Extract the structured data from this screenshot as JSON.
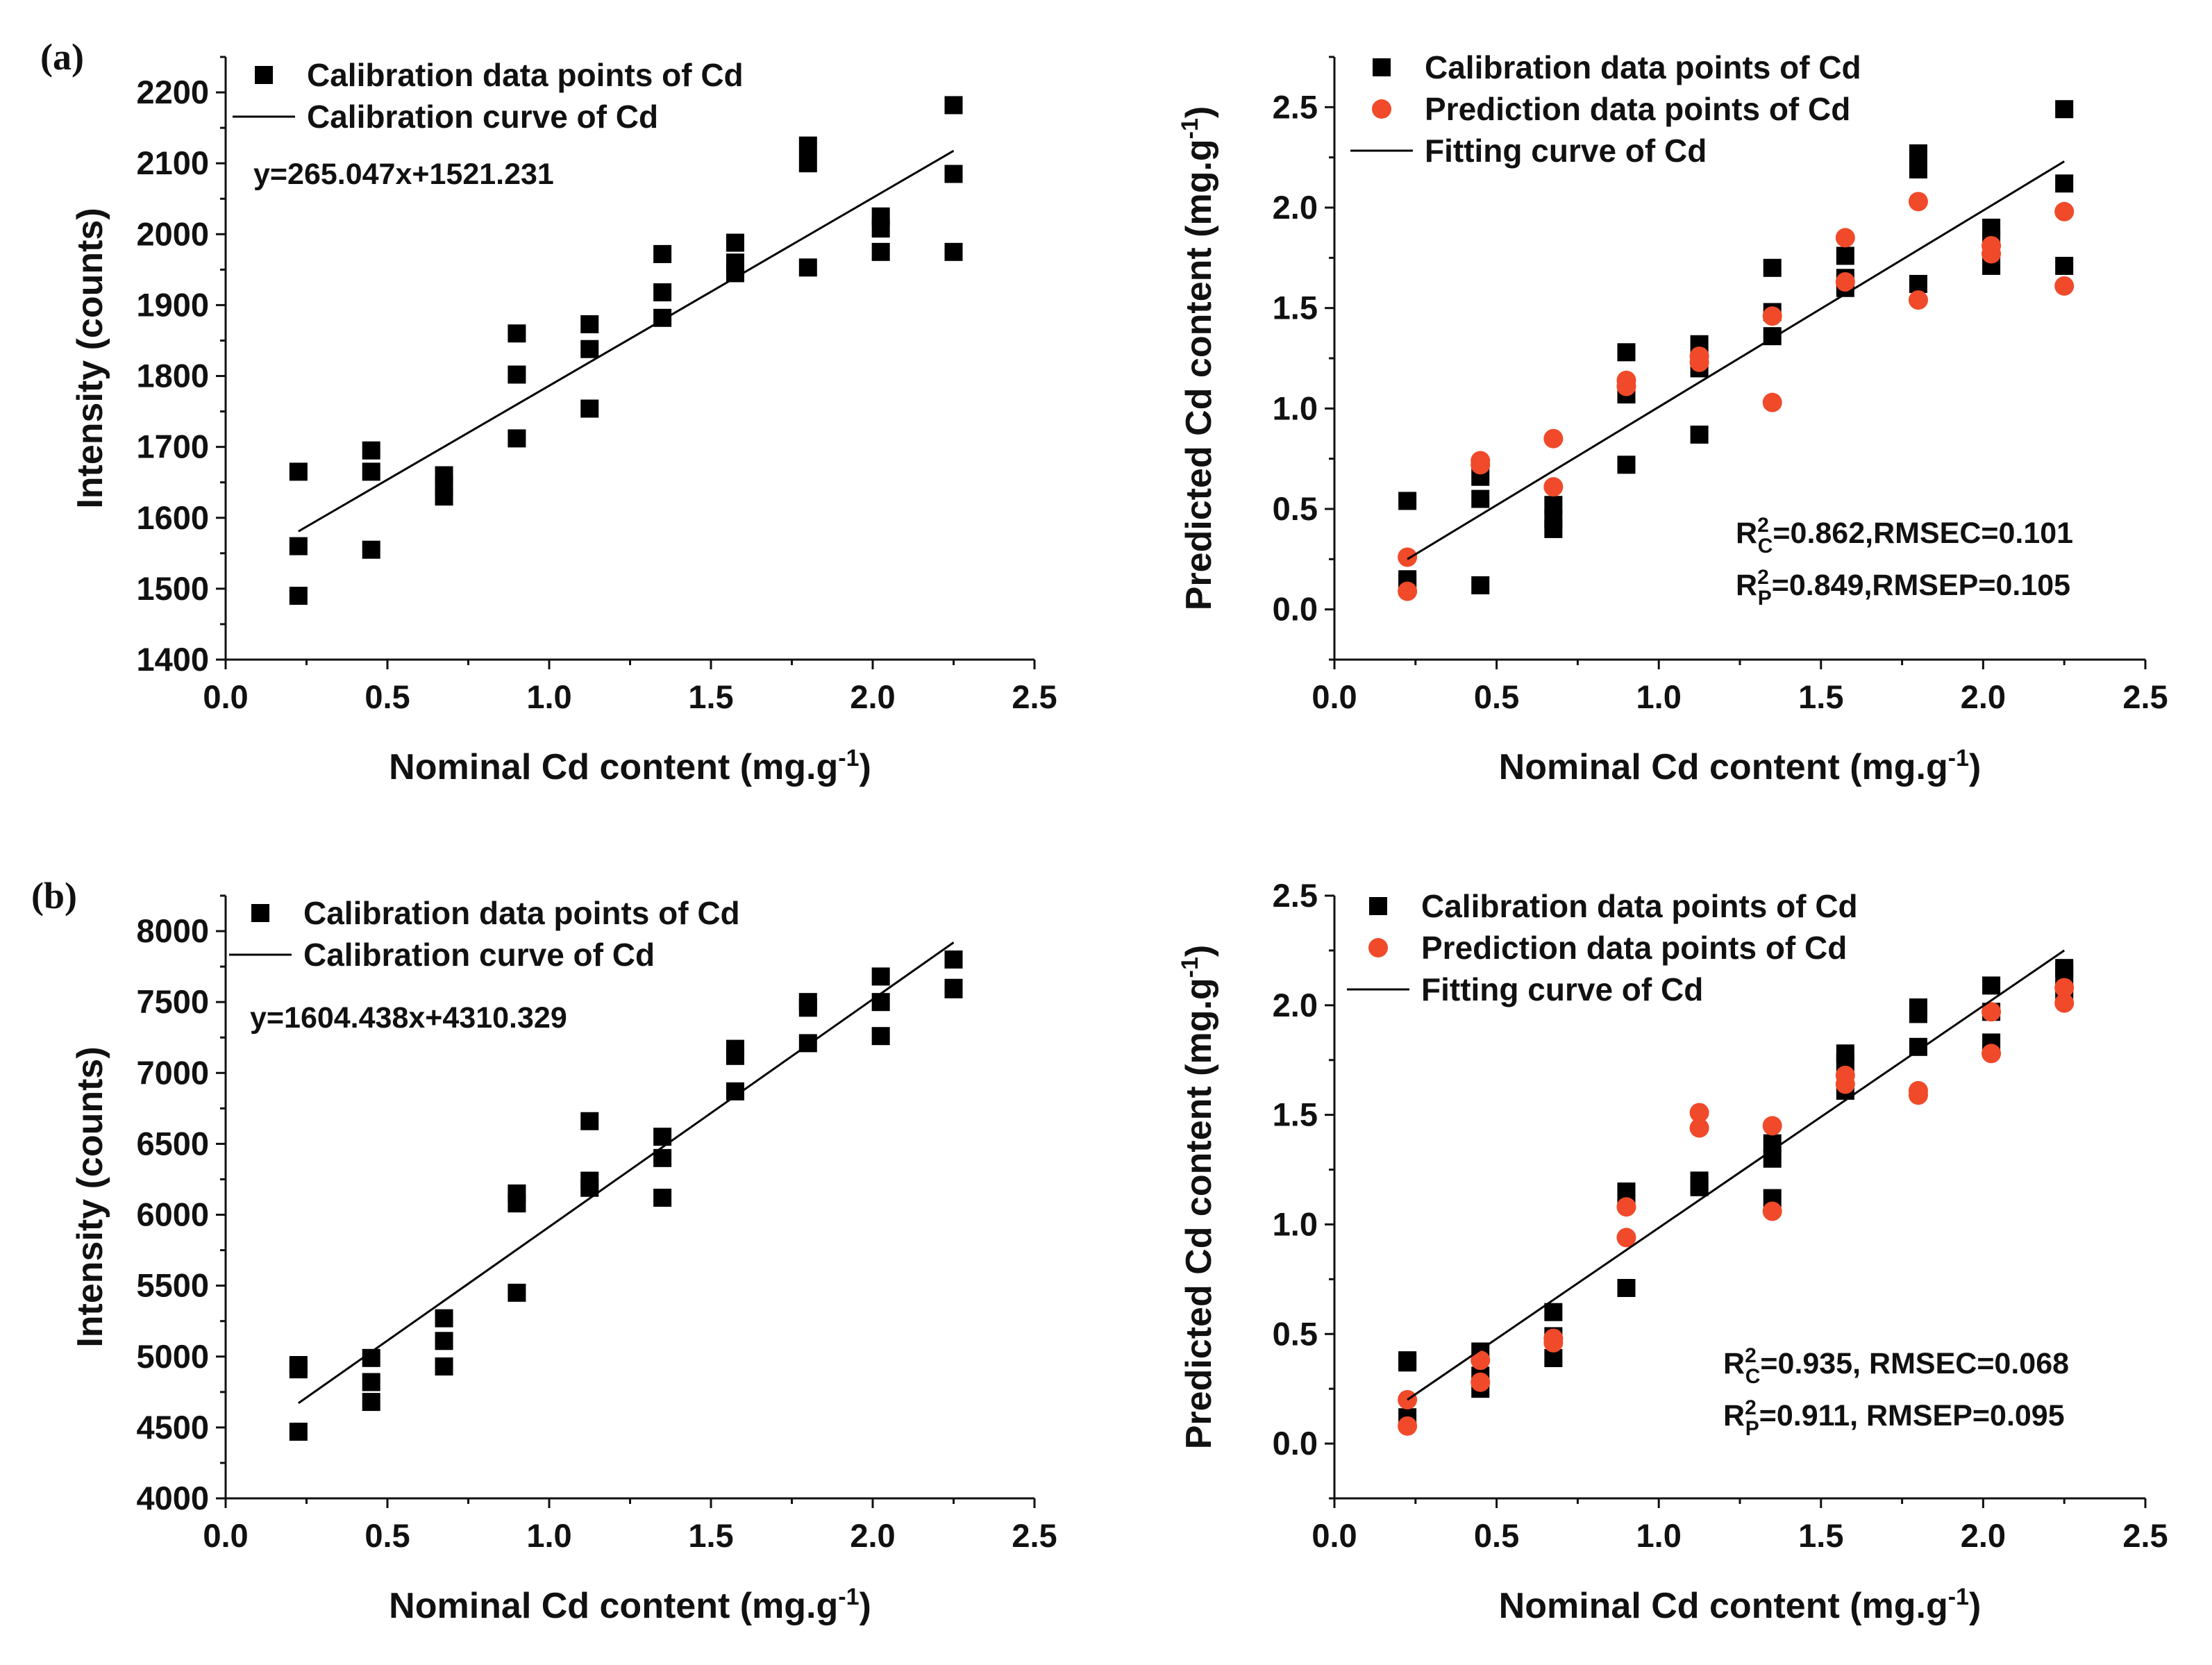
{
  "chart_data": [
    {
      "id": "a-left",
      "type": "scatter",
      "panel_label": "(a)",
      "xlabel": "Nominal Cd content (mg.g",
      "xlabel_sup": "-1",
      "xlabel_end": ")",
      "ylabel": "Intensity (counts)",
      "xlim": [
        0,
        2.5
      ],
      "ylim": [
        1400,
        2250
      ],
      "xticks": [
        0,
        0.5,
        1,
        1.5,
        2,
        2.5
      ],
      "xtick_labels": [
        "0.0",
        "0.5",
        "1.0",
        "1.5",
        "2.0",
        "2.5"
      ],
      "yticks": [
        1400,
        1500,
        1600,
        1700,
        1800,
        1900,
        2000,
        2100,
        2200
      ],
      "ytick_labels": [
        "1400",
        "1500",
        "1600",
        "1700",
        "1800",
        "1900",
        "2000",
        "2100",
        "2200"
      ],
      "legend": [
        {
          "label": "Calibration data points of Cd",
          "marker": "square",
          "color": "#000000"
        },
        {
          "label": "Calibration curve of Cd",
          "marker": "line",
          "color": "#000000"
        }
      ],
      "equation": "y=265.047x+1521.231",
      "series": [
        {
          "name": "Calibration data points of Cd",
          "marker": "square",
          "color": "#000000",
          "points": [
            [
              0.225,
              1665
            ],
            [
              0.225,
              1560
            ],
            [
              0.225,
              1490
            ],
            [
              0.45,
              1695
            ],
            [
              0.45,
              1665
            ],
            [
              0.45,
              1555
            ],
            [
              0.675,
              1660
            ],
            [
              0.675,
              1645
            ],
            [
              0.675,
              1630
            ],
            [
              0.9,
              1860
            ],
            [
              0.9,
              1802
            ],
            [
              0.9,
              1712
            ],
            [
              1.125,
              1873
            ],
            [
              1.125,
              1838
            ],
            [
              1.125,
              1754
            ],
            [
              1.35,
              1972
            ],
            [
              1.35,
              1918
            ],
            [
              1.35,
              1882
            ],
            [
              1.575,
              1988
            ],
            [
              1.575,
              1960
            ],
            [
              1.575,
              1945
            ],
            [
              1.8,
              2125
            ],
            [
              1.8,
              2100
            ],
            [
              1.8,
              1953
            ],
            [
              2.025,
              2025
            ],
            [
              2.025,
              2008
            ],
            [
              2.025,
              1975
            ],
            [
              2.25,
              2182
            ],
            [
              2.25,
              2085
            ],
            [
              2.25,
              1975
            ]
          ]
        },
        {
          "name": "Calibration curve of Cd",
          "type": "line",
          "color": "#000000",
          "points": [
            [
              0.225,
              1580.9
            ],
            [
              2.25,
              2117.6
            ]
          ]
        }
      ]
    },
    {
      "id": "a-right",
      "type": "scatter",
      "xlabel": "Nominal Cd content (mg.g",
      "xlabel_sup": "-1",
      "xlabel_end": ")",
      "ylabel": "Predicted Cd content (mg.g",
      "ylabel_sup": "-1",
      "ylabel_end": ")",
      "xlim": [
        0,
        2.5
      ],
      "ylim": [
        -0.25,
        2.75
      ],
      "xticks": [
        0,
        0.5,
        1,
        1.5,
        2,
        2.5
      ],
      "xtick_labels": [
        "0.0",
        "0.5",
        "1.0",
        "1.5",
        "2.0",
        "2.5"
      ],
      "yticks": [
        0,
        0.5,
        1,
        1.5,
        2,
        2.5
      ],
      "ytick_labels": [
        "0.0",
        "0.5",
        "1.0",
        "1.5",
        "2.0",
        "2.5"
      ],
      "legend": [
        {
          "label": "Calibration data points of Cd",
          "marker": "square",
          "color": "#000000"
        },
        {
          "label": "Prediction data points of Cd",
          "marker": "circle",
          "color": "#f04a2a"
        },
        {
          "label": "Fitting curve of Cd",
          "marker": "line",
          "color": "#000000"
        }
      ],
      "annotations": [
        {
          "base": "R",
          "sup": "2",
          "sub": "C",
          "rest": "=0.862,RMSEC=0.101"
        },
        {
          "base": "R",
          "sup": "2",
          "sub": "P",
          "rest": "=0.849,RMSEP=0.105"
        }
      ],
      "series": [
        {
          "name": "Calibration data points of Cd",
          "marker": "square",
          "color": "#000000",
          "points": [
            [
              0.225,
              0.54
            ],
            [
              0.225,
              0.15
            ],
            [
              0.225,
              0.13
            ],
            [
              0.45,
              0.66
            ],
            [
              0.45,
              0.55
            ],
            [
              0.45,
              0.12
            ],
            [
              0.675,
              0.52
            ],
            [
              0.675,
              0.45
            ],
            [
              0.675,
              0.4
            ],
            [
              0.9,
              1.28
            ],
            [
              0.9,
              1.07
            ],
            [
              0.9,
              0.72
            ],
            [
              1.125,
              1.32
            ],
            [
              1.125,
              1.2
            ],
            [
              1.125,
              0.87
            ],
            [
              1.35,
              1.7
            ],
            [
              1.35,
              1.48
            ],
            [
              1.35,
              1.36
            ],
            [
              1.575,
              1.76
            ],
            [
              1.575,
              1.65
            ],
            [
              1.575,
              1.6
            ],
            [
              1.8,
              2.27
            ],
            [
              1.8,
              2.19
            ],
            [
              1.8,
              1.62
            ],
            [
              2.025,
              1.9
            ],
            [
              2.025,
              1.84
            ],
            [
              2.025,
              1.71
            ],
            [
              2.25,
              2.49
            ],
            [
              2.25,
              2.12
            ],
            [
              2.25,
              1.71
            ]
          ]
        },
        {
          "name": "Prediction data points of Cd",
          "marker": "circle",
          "color": "#f04a2a",
          "points": [
            [
              0.225,
              0.26
            ],
            [
              0.225,
              0.09
            ],
            [
              0.45,
              0.74
            ],
            [
              0.45,
              0.72
            ],
            [
              0.675,
              0.85
            ],
            [
              0.675,
              0.61
            ],
            [
              0.9,
              1.14
            ],
            [
              0.9,
              1.11
            ],
            [
              1.125,
              1.26
            ],
            [
              1.125,
              1.23
            ],
            [
              1.35,
              1.46
            ],
            [
              1.35,
              1.03
            ],
            [
              1.575,
              1.85
            ],
            [
              1.575,
              1.63
            ],
            [
              1.8,
              2.03
            ],
            [
              1.8,
              1.54
            ],
            [
              2.025,
              1.81
            ],
            [
              2.025,
              1.77
            ],
            [
              2.25,
              1.98
            ],
            [
              2.25,
              1.61
            ]
          ]
        },
        {
          "name": "Fitting curve of Cd",
          "type": "line",
          "color": "#000000",
          "points": [
            [
              0.225,
              0.25
            ],
            [
              2.25,
              2.23
            ]
          ]
        }
      ]
    },
    {
      "id": "b-left",
      "type": "scatter",
      "panel_label": "(b)",
      "xlabel": "Nominal Cd content (mg.g",
      "xlabel_sup": "-1",
      "xlabel_end": ")",
      "ylabel": "Intensity (counts)",
      "xlim": [
        0,
        2.5
      ],
      "ylim": [
        4000,
        8250
      ],
      "xticks": [
        0,
        0.5,
        1,
        1.5,
        2,
        2.5
      ],
      "xtick_labels": [
        "0.0",
        "0.5",
        "1.0",
        "1.5",
        "2.0",
        "2.5"
      ],
      "yticks": [
        4000,
        4500,
        5000,
        5500,
        6000,
        6500,
        7000,
        7500,
        8000
      ],
      "ytick_labels": [
        "4000",
        "4500",
        "5000",
        "5500",
        "6000",
        "6500",
        "7000",
        "7500",
        "8000"
      ],
      "legend": [
        {
          "label": "Calibration data points of Cd",
          "marker": "square",
          "color": "#000000"
        },
        {
          "label": "Calibration curve of Cd",
          "marker": "line",
          "color": "#000000"
        }
      ],
      "equation": "y=1604.438x+4310.329",
      "series": [
        {
          "name": "Calibration data points of Cd",
          "marker": "square",
          "color": "#000000",
          "points": [
            [
              0.225,
              4940
            ],
            [
              0.225,
              4910
            ],
            [
              0.225,
              4470
            ],
            [
              0.45,
              4990
            ],
            [
              0.45,
              4820
            ],
            [
              0.45,
              4680
            ],
            [
              0.675,
              5270
            ],
            [
              0.675,
              5110
            ],
            [
              0.675,
              4930
            ],
            [
              0.9,
              6150
            ],
            [
              0.9,
              6080
            ],
            [
              0.9,
              5450
            ],
            [
              1.125,
              6660
            ],
            [
              1.125,
              6240
            ],
            [
              1.125,
              6190
            ],
            [
              1.35,
              6550
            ],
            [
              1.35,
              6400
            ],
            [
              1.35,
              6120
            ],
            [
              1.575,
              7170
            ],
            [
              1.575,
              7120
            ],
            [
              1.575,
              6870
            ],
            [
              1.8,
              7500
            ],
            [
              1.8,
              7460
            ],
            [
              1.8,
              7210
            ],
            [
              2.025,
              7680
            ],
            [
              2.025,
              7500
            ],
            [
              2.025,
              7260
            ],
            [
              2.25,
              7800
            ],
            [
              2.25,
              7600
            ],
            [
              2.25,
              7590
            ]
          ]
        },
        {
          "name": "Calibration curve of Cd",
          "type": "line",
          "color": "#000000",
          "points": [
            [
              0.225,
              4671.3
            ],
            [
              2.25,
              7920.3
            ]
          ]
        }
      ]
    },
    {
      "id": "b-right",
      "type": "scatter",
      "xlabel": "Nominal Cd content (mg.g",
      "xlabel_sup": "-1",
      "xlabel_end": ")",
      "ylabel": "Predicted Cd content (mg.g",
      "ylabel_sup": "-1",
      "ylabel_end": ")",
      "xlim": [
        0,
        2.5
      ],
      "ylim": [
        -0.25,
        2.5
      ],
      "xticks": [
        0,
        0.5,
        1,
        1.5,
        2,
        2.5
      ],
      "xtick_labels": [
        "0.0",
        "0.5",
        "1.0",
        "1.5",
        "2.0",
        "2.5"
      ],
      "yticks": [
        0,
        0.5,
        1,
        1.5,
        2,
        2.5
      ],
      "ytick_labels": [
        "0.0",
        "0.5",
        "1.0",
        "1.5",
        "2.0",
        "2.5"
      ],
      "legend": [
        {
          "label": "Calibration data points of Cd",
          "marker": "square",
          "color": "#000000"
        },
        {
          "label": "Prediction data points of Cd",
          "marker": "circle",
          "color": "#f04a2a"
        },
        {
          "label": "Fitting curve of Cd",
          "marker": "line",
          "color": "#000000"
        }
      ],
      "annotations": [
        {
          "base": "R",
          "sup": "2",
          "sub": "C",
          "rest": "=0.935, RMSEC=0.068"
        },
        {
          "base": "R",
          "sup": "2",
          "sub": "P",
          "rest": "=0.911, RMSEP=0.095"
        }
      ],
      "series": [
        {
          "name": "Calibration data points of Cd",
          "marker": "square",
          "color": "#000000",
          "points": [
            [
              0.225,
              0.38
            ],
            [
              0.225,
              0.37
            ],
            [
              0.225,
              0.12
            ],
            [
              0.45,
              0.42
            ],
            [
              0.45,
              0.31
            ],
            [
              0.45,
              0.25
            ],
            [
              0.675,
              0.6
            ],
            [
              0.675,
              0.49
            ],
            [
              0.675,
              0.39
            ],
            [
              0.9,
              1.15
            ],
            [
              0.9,
              1.12
            ],
            [
              0.9,
              0.71
            ],
            [
              1.125,
              1.2
            ],
            [
              1.125,
              1.18
            ],
            [
              1.125,
              1.17
            ],
            [
              1.35,
              1.37
            ],
            [
              1.35,
              1.3
            ],
            [
              1.35,
              1.12
            ],
            [
              1.575,
              1.78
            ],
            [
              1.575,
              1.74
            ],
            [
              1.575,
              1.61
            ],
            [
              1.8,
              1.99
            ],
            [
              1.8,
              1.96
            ],
            [
              1.8,
              1.81
            ],
            [
              2.025,
              2.09
            ],
            [
              2.025,
              1.97
            ],
            [
              2.025,
              1.83
            ],
            [
              2.25,
              2.17
            ],
            [
              2.25,
              2.15
            ],
            [
              2.25,
              2.07
            ]
          ]
        },
        {
          "name": "Prediction data points of Cd",
          "marker": "circle",
          "color": "#f04a2a",
          "points": [
            [
              0.225,
              0.2
            ],
            [
              0.225,
              0.08
            ],
            [
              0.45,
              0.38
            ],
            [
              0.45,
              0.28
            ],
            [
              0.675,
              0.48
            ],
            [
              0.675,
              0.46
            ],
            [
              0.9,
              1.08
            ],
            [
              0.9,
              0.94
            ],
            [
              1.125,
              1.51
            ],
            [
              1.125,
              1.44
            ],
            [
              1.35,
              1.45
            ],
            [
              1.35,
              1.06
            ],
            [
              1.575,
              1.68
            ],
            [
              1.575,
              1.64
            ],
            [
              1.8,
              1.61
            ],
            [
              1.8,
              1.59
            ],
            [
              2.025,
              1.97
            ],
            [
              2.025,
              1.78
            ],
            [
              2.25,
              2.08
            ],
            [
              2.25,
              2.01
            ]
          ]
        },
        {
          "name": "Fitting curve of Cd",
          "type": "line",
          "color": "#000000",
          "points": [
            [
              0.225,
              0.2
            ],
            [
              2.25,
              2.25
            ]
          ]
        }
      ]
    }
  ]
}
